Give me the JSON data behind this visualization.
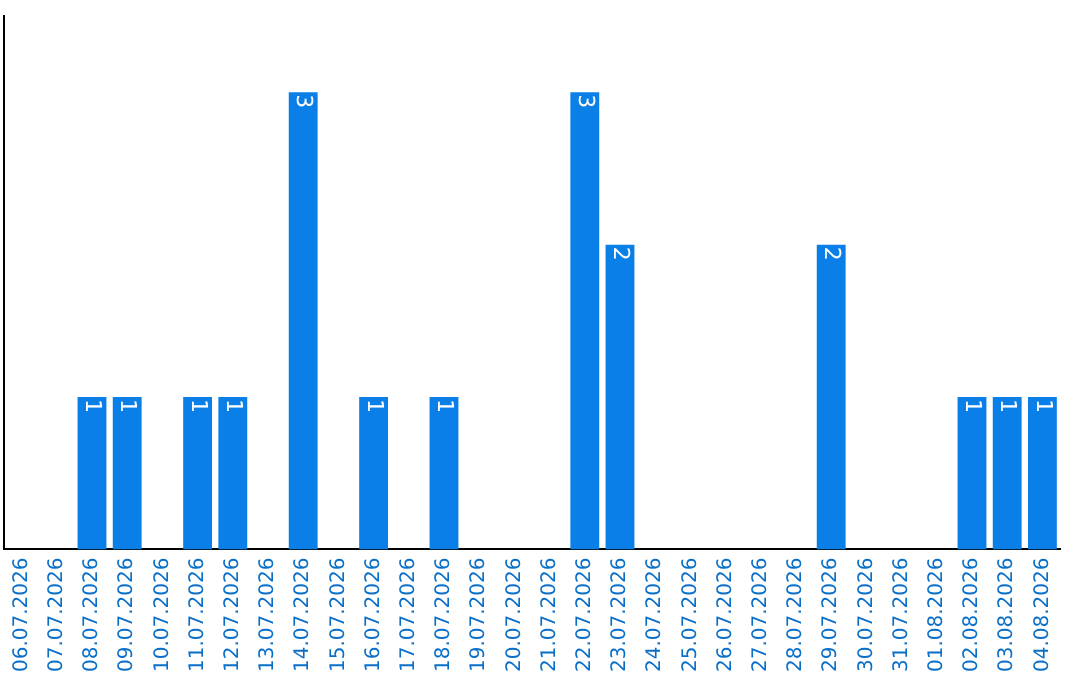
{
  "chart_data": {
    "type": "bar",
    "categories": [
      "06.07.2026",
      "07.07.2026",
      "08.07.2026",
      "09.07.2026",
      "10.07.2026",
      "11.07.2026",
      "12.07.2026",
      "13.07.2026",
      "14.07.2026",
      "15.07.2026",
      "16.07.2026",
      "17.07.2026",
      "18.07.2026",
      "19.07.2026",
      "20.07.2026",
      "21.07.2026",
      "22.07.2026",
      "23.07.2026",
      "24.07.2026",
      "25.07.2026",
      "26.07.2026",
      "27.07.2026",
      "28.07.2026",
      "29.07.2026",
      "30.07.2026",
      "31.07.2026",
      "01.08.2026",
      "02.08.2026",
      "03.08.2026",
      "04.08.2026"
    ],
    "values": [
      null,
      null,
      1,
      1,
      null,
      1,
      1,
      null,
      3,
      null,
      1,
      null,
      1,
      null,
      null,
      null,
      3,
      2,
      null,
      null,
      null,
      null,
      null,
      2,
      null,
      null,
      null,
      1,
      1,
      1
    ],
    "value_labels": [
      null,
      null,
      "1",
      "1",
      null,
      "1",
      "1",
      null,
      "3",
      null,
      "1",
      null,
      "1",
      null,
      null,
      null,
      "3",
      "2",
      null,
      null,
      null,
      null,
      null,
      "2",
      null,
      null,
      null,
      "1",
      "1",
      "1"
    ],
    "color": "#0a7fe8",
    "tick_labels": "x",
    "grid": false,
    "legend": false
  }
}
